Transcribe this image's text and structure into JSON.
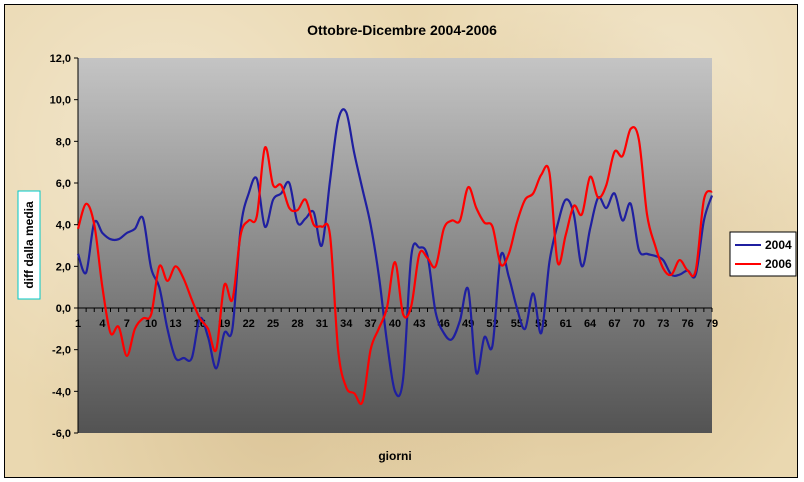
{
  "chart_data": {
    "type": "line",
    "title": "Ottobre-Dicembre 2004-2006",
    "xlabel": "giorni",
    "ylabel": "diff dalla media",
    "ylim": [
      -6,
      12
    ],
    "yticks": [
      "-6,0",
      "-4,0",
      "-2,0",
      "0,0",
      "2,0",
      "4,0",
      "6,0",
      "8,0",
      "10,0",
      "12,0"
    ],
    "ytick_values": [
      -6,
      -4,
      -2,
      0,
      2,
      4,
      6,
      8,
      10,
      12
    ],
    "xticks": [
      1,
      4,
      7,
      10,
      13,
      16,
      19,
      22,
      25,
      28,
      31,
      34,
      37,
      40,
      43,
      46,
      49,
      52,
      55,
      58,
      61,
      64,
      67,
      70,
      73,
      76,
      79
    ],
    "xlim": [
      1,
      79
    ],
    "grid": false,
    "legend_position": "right",
    "series": [
      {
        "name": "2004",
        "color": "#1f1fa0",
        "x": [
          1,
          2,
          3,
          4,
          5,
          6,
          7,
          8,
          9,
          10,
          11,
          12,
          13,
          14,
          15,
          16,
          17,
          18,
          19,
          20,
          21,
          22,
          23,
          24,
          25,
          26,
          27,
          28,
          29,
          30,
          31,
          32,
          33,
          34,
          35,
          36,
          37,
          38,
          39,
          40,
          41,
          42,
          43,
          44,
          45,
          46,
          47,
          48,
          49,
          50,
          51,
          52,
          53,
          54,
          55,
          56,
          57,
          58,
          59,
          60,
          61,
          62,
          63,
          64,
          65,
          66,
          67,
          68,
          69,
          70,
          71,
          72,
          73,
          74,
          75,
          76,
          77,
          78,
          79
        ],
        "values": [
          2.6,
          1.7,
          4.1,
          3.6,
          3.3,
          3.3,
          3.6,
          3.8,
          4.3,
          1.9,
          1.0,
          -1.0,
          -2.4,
          -2.4,
          -2.4,
          -0.5,
          -1.4,
          -2.9,
          -1.2,
          -1.0,
          3.8,
          5.5,
          6.2,
          3.9,
          5.2,
          5.5,
          6.0,
          4.1,
          4.3,
          4.6,
          3.0,
          6.1,
          9.0,
          9.4,
          7.4,
          5.7,
          4.0,
          1.6,
          -1.6,
          -4.0,
          -3.4,
          2.5,
          2.9,
          2.5,
          -0.2,
          -1.2,
          -1.5,
          -0.6,
          0.9,
          -3.1,
          -1.4,
          -1.8,
          2.5,
          1.5,
          0.0,
          -1.0,
          0.7,
          -1.2,
          2.2,
          4.0,
          5.2,
          4.5,
          2.0,
          3.8,
          5.3,
          4.8,
          5.5,
          4.2,
          5.0,
          2.8,
          2.6,
          2.5,
          2.3,
          1.6,
          1.6,
          1.8,
          1.6,
          4.2,
          5.4
        ]
      },
      {
        "name": "2006",
        "color": "#ff0000",
        "x": [
          1,
          2,
          3,
          4,
          5,
          6,
          7,
          8,
          9,
          10,
          11,
          12,
          13,
          14,
          15,
          16,
          17,
          18,
          19,
          20,
          21,
          22,
          23,
          24,
          25,
          26,
          27,
          28,
          29,
          30,
          31,
          32,
          33,
          34,
          35,
          36,
          37,
          38,
          39,
          40,
          41,
          42,
          43,
          44,
          45,
          46,
          47,
          48,
          49,
          50,
          51,
          52,
          53,
          54,
          55,
          56,
          57,
          58,
          59,
          60,
          61,
          62,
          63,
          64,
          65,
          66,
          67,
          68,
          69,
          70,
          71,
          72,
          73,
          74,
          75,
          76,
          77,
          78,
          79
        ],
        "values": [
          3.8,
          5.0,
          4.0,
          1.0,
          -1.2,
          -0.9,
          -2.3,
          -1.0,
          -0.5,
          -0.3,
          2.0,
          1.3,
          2.0,
          1.4,
          0.4,
          -0.5,
          -1.0,
          -2.0,
          1.1,
          0.4,
          3.5,
          4.2,
          4.4,
          7.7,
          5.9,
          5.9,
          4.8,
          4.7,
          5.2,
          4.0,
          3.9,
          3.5,
          -2.0,
          -3.8,
          -4.1,
          -4.5,
          -2.0,
          -1.0,
          0.0,
          2.2,
          -0.3,
          0.1,
          2.6,
          2.4,
          2.0,
          3.8,
          4.2,
          4.2,
          5.8,
          4.8,
          4.1,
          3.9,
          2.1,
          2.6,
          4.1,
          5.2,
          5.5,
          6.4,
          6.5,
          2.2,
          3.5,
          4.9,
          4.5,
          6.3,
          5.3,
          5.9,
          7.5,
          7.3,
          8.6,
          8.1,
          4.5,
          3.0,
          1.9,
          1.6,
          2.3,
          1.8,
          1.8,
          5.2,
          5.6
        ]
      }
    ]
  }
}
